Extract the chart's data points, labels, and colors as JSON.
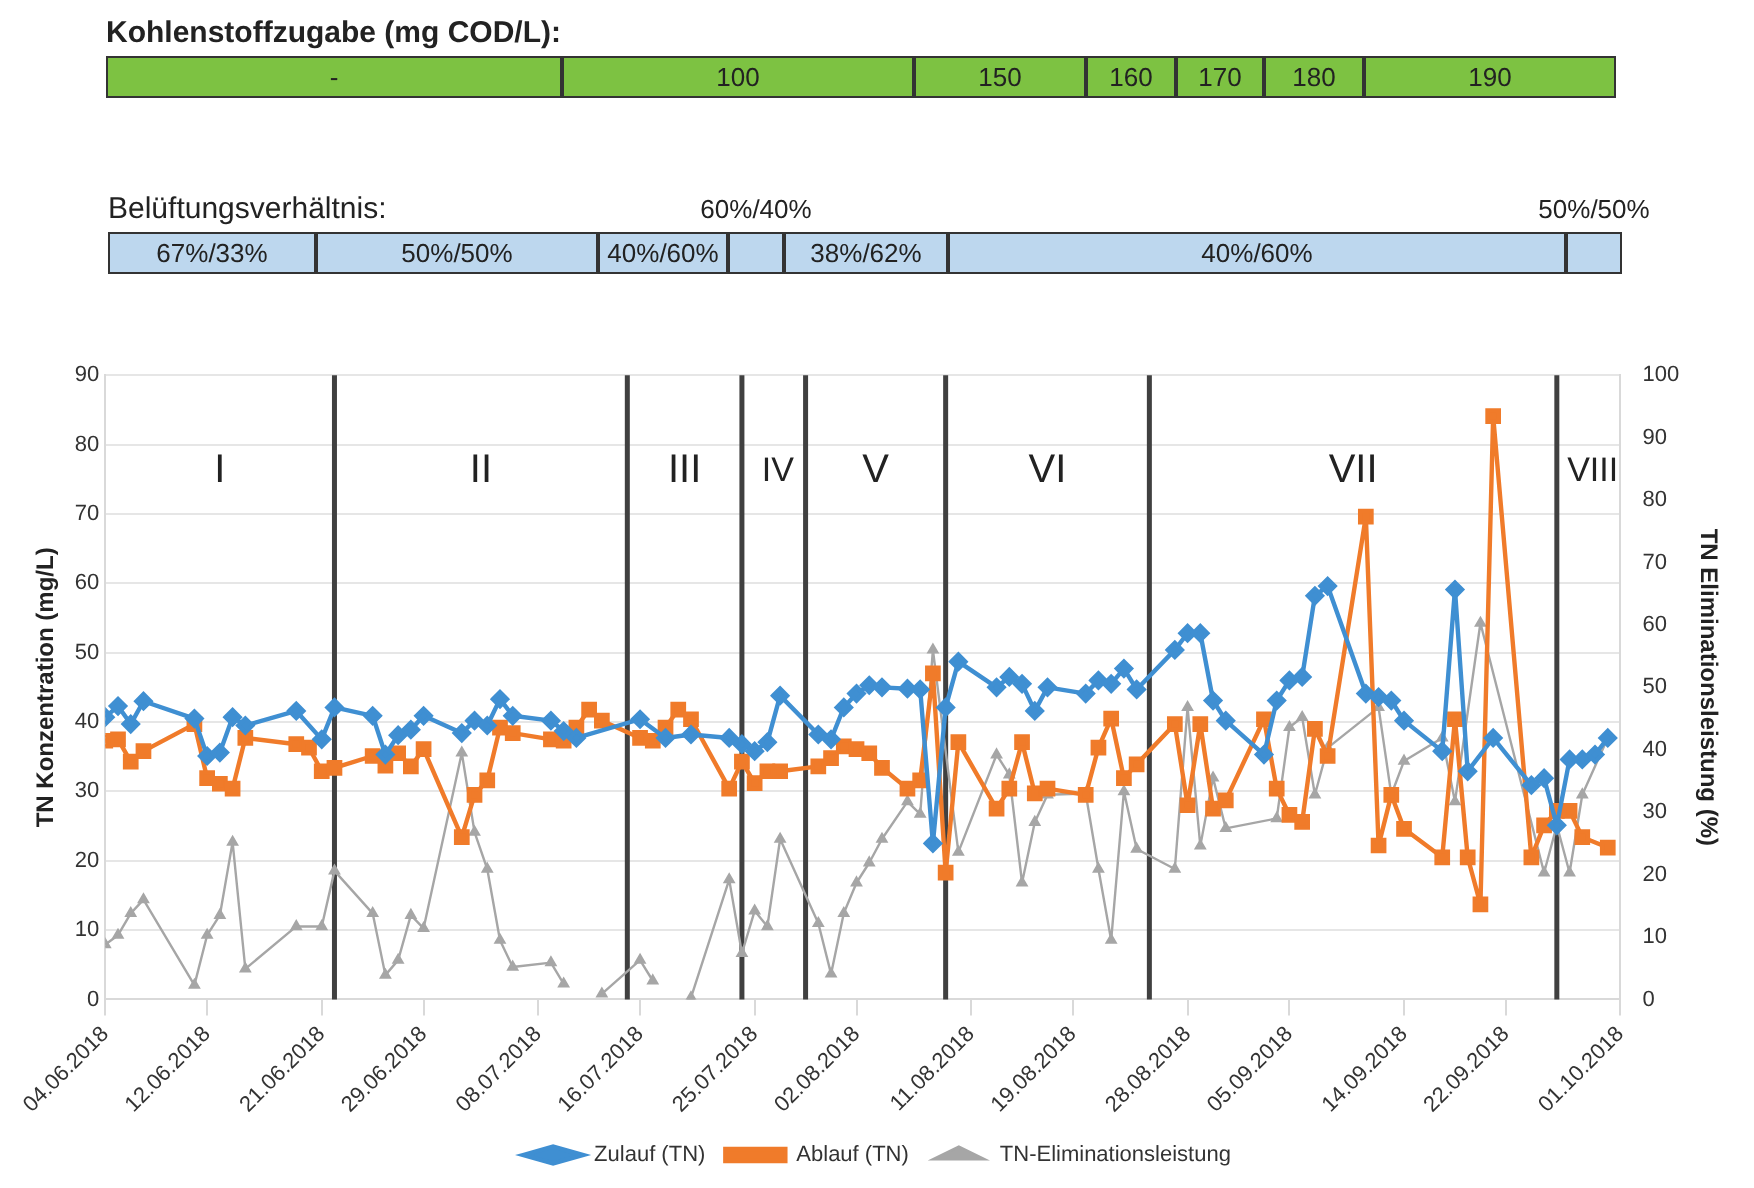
{
  "chart_data": [
    {
      "type": "other",
      "title": "Kohlenstoffzugabe (mg COD/L):",
      "color": "#7dc242",
      "annotations": [
        "-",
        "100",
        "150",
        "160",
        "170",
        "180",
        "190"
      ]
    },
    {
      "type": "other",
      "title": "Belüftungsverhältnis:",
      "color": "#bdd7ee",
      "annotations": [
        "67%/33%",
        "50%/50%",
        "40%/60%",
        "60%/40%",
        "38%/62%",
        "40%/60%",
        "50%/50%"
      ]
    },
    {
      "type": "line",
      "ylabel": "TN Konzentration (mg/L)",
      "y2label": "TN Eliminationsleistung (%)",
      "grid": "y",
      "legend": "bottom",
      "xlim": [
        "2018-06-04",
        "2018-10-01"
      ],
      "xticks": [
        {
          "value": "2018-06-04",
          "label": "04.06.2018"
        },
        {
          "value": "2018-06-12",
          "label": "12.06.2018"
        },
        {
          "value": "2018-06-21",
          "label": "21.06.2018"
        },
        {
          "value": "2018-06-29",
          "label": "29.06.2018"
        },
        {
          "value": "2018-07-08",
          "label": "08.07.2018"
        },
        {
          "value": "2018-07-16",
          "label": "16.07.2018"
        },
        {
          "value": "2018-07-25",
          "label": "25.07.2018"
        },
        {
          "value": "2018-08-02",
          "label": "02.08.2018"
        },
        {
          "value": "2018-08-11",
          "label": "11.08.2018"
        },
        {
          "value": "2018-08-19",
          "label": "19.08.2018"
        },
        {
          "value": "2018-08-28",
          "label": "28.08.2018"
        },
        {
          "value": "2018-09-05",
          "label": "05.09.2018"
        },
        {
          "value": "2018-09-14",
          "label": "14.09.2018"
        },
        {
          "value": "2018-09-22",
          "label": "22.09.2018"
        },
        {
          "value": "2018-10-01",
          "label": "01.10.2018"
        }
      ],
      "ylim": [
        0,
        90
      ],
      "yticks": [
        0,
        10,
        20,
        30,
        40,
        50,
        60,
        70,
        80,
        90
      ],
      "y2lim": [
        0,
        100
      ],
      "y2ticks": [
        0,
        10,
        20,
        30,
        40,
        50,
        60,
        70,
        80,
        90,
        100
      ],
      "ref_lines": [
        {
          "axis": "x",
          "value": "2018-06-22",
          "color": "#404040"
        },
        {
          "axis": "x",
          "value": "2018-07-15",
          "color": "#404040"
        },
        {
          "axis": "x",
          "value": "2018-07-24",
          "color": "#404040"
        },
        {
          "axis": "x",
          "value": "2018-07-29",
          "color": "#404040"
        },
        {
          "axis": "x",
          "value": "2018-08-09",
          "color": "#404040"
        },
        {
          "axis": "x",
          "value": "2018-08-25",
          "color": "#404040"
        },
        {
          "axis": "x",
          "value": "2018-09-26",
          "color": "#404040"
        }
      ],
      "annotations": [
        "I",
        "II",
        "III",
        "IV",
        "V",
        "VI",
        "VII",
        "VIII"
      ],
      "series": [
        {
          "name": "Zulauf (TN)",
          "color": "#3f8fd2",
          "marker": "diamond",
          "x": [
            "2018-06-04",
            "2018-06-05",
            "2018-06-06",
            "2018-06-07",
            "2018-06-11",
            "2018-06-12",
            "2018-06-13",
            "2018-06-14",
            "2018-06-15",
            "2018-06-19",
            "2018-06-21",
            "2018-06-22",
            "2018-06-25",
            "2018-06-26",
            "2018-06-27",
            "2018-06-28",
            "2018-06-29",
            "2018-07-02",
            "2018-07-03",
            "2018-07-04",
            "2018-07-05",
            "2018-07-06",
            "2018-07-09",
            "2018-07-10",
            "2018-07-11",
            "2018-07-16",
            "2018-07-18",
            "2018-07-20",
            "2018-07-23",
            "2018-07-24",
            "2018-07-25",
            "2018-07-26",
            "2018-07-27",
            "2018-07-30",
            "2018-07-31",
            "2018-08-01",
            "2018-08-02",
            "2018-08-03",
            "2018-08-04",
            "2018-08-06",
            "2018-08-07",
            "2018-08-08",
            "2018-08-09",
            "2018-08-10",
            "2018-08-13",
            "2018-08-14",
            "2018-08-15",
            "2018-08-16",
            "2018-08-17",
            "2018-08-20",
            "2018-08-21",
            "2018-08-22",
            "2018-08-23",
            "2018-08-24",
            "2018-08-27",
            "2018-08-28",
            "2018-08-29",
            "2018-08-30",
            "2018-08-31",
            "2018-09-03",
            "2018-09-04",
            "2018-09-05",
            "2018-09-06",
            "2018-09-07",
            "2018-09-08",
            "2018-09-11",
            "2018-09-12",
            "2018-09-13",
            "2018-09-14",
            "2018-09-17",
            "2018-09-18",
            "2018-09-19",
            "2018-09-21",
            "2018-09-24",
            "2018-09-25",
            "2018-09-26",
            "2018-09-27",
            "2018-09-28",
            "2018-09-29",
            "2018-09-30"
          ],
          "values": [
            40.7,
            42.3,
            39.7,
            43.0,
            40.5,
            35.1,
            35.6,
            40.7,
            39.5,
            41.6,
            37.5,
            42.1,
            40.9,
            35.3,
            38.1,
            38.9,
            40.9,
            38.4,
            40.2,
            39.5,
            43.3,
            40.9,
            40.2,
            38.7,
            37.7,
            40.4,
            37.7,
            38.2,
            37.7,
            36.8,
            35.8,
            37.1,
            43.8,
            38.2,
            37.5,
            42.1,
            44.1,
            45.3,
            45.0,
            44.8,
            44.7,
            22.5,
            42.1,
            48.7,
            45.0,
            46.5,
            45.5,
            41.6,
            45.0,
            44.1,
            46.0,
            45.5,
            47.7,
            44.7,
            50.4,
            52.8,
            52.8,
            43.1,
            40.2,
            35.3,
            43.1,
            46.0,
            46.5,
            58.2,
            59.6,
            44.1,
            43.6,
            43.1,
            40.2,
            35.8,
            59.1,
            32.9,
            37.7,
            30.9,
            31.9,
            25.1,
            34.6,
            34.6,
            35.3,
            37.7
          ]
        },
        {
          "name": "Ablauf (TN)",
          "color": "#f07b2a",
          "marker": "square",
          "x": [
            "2018-06-04",
            "2018-06-05",
            "2018-06-06",
            "2018-06-07",
            "2018-06-11",
            "2018-06-12",
            "2018-06-13",
            "2018-06-14",
            "2018-06-15",
            "2018-06-19",
            "2018-06-20",
            "2018-06-21",
            "2018-06-22",
            "2018-06-25",
            "2018-06-26",
            "2018-06-27",
            "2018-06-28",
            "2018-06-29",
            "2018-07-02",
            "2018-07-03",
            "2018-07-04",
            "2018-07-05",
            "2018-07-06",
            "2018-07-09",
            "2018-07-10",
            "2018-07-11",
            "2018-07-12",
            "2018-07-13",
            "2018-07-16",
            "2018-07-17",
            "2018-07-18",
            "2018-07-19",
            "2018-07-20",
            "2018-07-23",
            "2018-07-24",
            "2018-07-25",
            "2018-07-26",
            "2018-07-27",
            "2018-07-30",
            "2018-07-31",
            "2018-08-01",
            "2018-08-02",
            "2018-08-03",
            "2018-08-04",
            "2018-08-06",
            "2018-08-07",
            "2018-08-08",
            "2018-08-09",
            "2018-08-10",
            "2018-08-13",
            "2018-08-14",
            "2018-08-15",
            "2018-08-16",
            "2018-08-17",
            "2018-08-20",
            "2018-08-21",
            "2018-08-22",
            "2018-08-23",
            "2018-08-24",
            "2018-08-27",
            "2018-08-28",
            "2018-08-29",
            "2018-08-30",
            "2018-08-31",
            "2018-09-03",
            "2018-09-04",
            "2018-09-05",
            "2018-09-06",
            "2018-09-07",
            "2018-09-08",
            "2018-09-11",
            "2018-09-12",
            "2018-09-13",
            "2018-09-14",
            "2018-09-17",
            "2018-09-18",
            "2018-09-19",
            "2018-09-20",
            "2018-09-21",
            "2018-09-24",
            "2018-09-25",
            "2018-09-26",
            "2018-09-27",
            "2018-09-28",
            "2018-09-30"
          ],
          "values": [
            37.3,
            37.5,
            34.3,
            35.8,
            39.7,
            31.9,
            31.1,
            30.4,
            37.7,
            36.8,
            36.3,
            32.9,
            33.4,
            35.1,
            33.7,
            35.5,
            33.6,
            36.1,
            23.4,
            29.5,
            31.6,
            39.2,
            38.4,
            37.5,
            37.3,
            39.2,
            41.8,
            40.2,
            37.7,
            37.3,
            39.2,
            41.8,
            40.4,
            30.4,
            34.3,
            31.2,
            32.9,
            32.9,
            33.6,
            34.8,
            36.5,
            36.1,
            35.5,
            33.4,
            30.4,
            31.6,
            47.0,
            18.3,
            37.1,
            27.5,
            30.4,
            37.1,
            29.7,
            30.4,
            29.5,
            36.3,
            40.5,
            31.9,
            33.9,
            39.7,
            28.0,
            39.7,
            27.5,
            28.7,
            40.4,
            30.4,
            26.6,
            25.6,
            39.0,
            35.1,
            69.6,
            22.2,
            29.5,
            24.6,
            20.5,
            40.4,
            20.5,
            13.7,
            84.1,
            20.5,
            25.1,
            27.2,
            27.2,
            23.4,
            21.9
          ]
        },
        {
          "name": "TN-Eliminationsleistung",
          "color": "#a6a6a6",
          "marker": "triangle",
          "axis": "y2",
          "x": [
            "2018-06-04",
            "2018-06-05",
            "2018-06-06",
            "2018-06-07",
            "2018-06-11",
            "2018-06-12",
            "2018-06-13",
            "2018-06-14",
            "2018-06-15",
            "2018-06-19",
            "2018-06-21",
            "2018-06-22",
            "2018-06-25",
            "2018-06-26",
            "2018-06-27",
            "2018-06-28",
            "2018-06-29",
            "2018-07-02",
            "2018-07-03",
            "2018-07-04",
            "2018-07-05",
            "2018-07-06",
            "2018-07-09",
            "2018-07-10",
            "2018-07-11",
            "2018-07-13",
            "2018-07-16",
            "2018-07-17",
            "2018-07-19",
            "2018-07-20",
            "2018-07-23",
            "2018-07-24",
            "2018-07-25",
            "2018-07-26",
            "2018-07-27",
            "2018-07-30",
            "2018-07-31",
            "2018-08-01",
            "2018-08-02",
            "2018-08-03",
            "2018-08-04",
            "2018-08-06",
            "2018-08-07",
            "2018-08-08",
            "2018-08-10",
            "2018-08-13",
            "2018-08-14",
            "2018-08-15",
            "2018-08-16",
            "2018-08-17",
            "2018-08-20",
            "2018-08-21",
            "2018-08-22",
            "2018-08-23",
            "2018-08-24",
            "2018-08-27",
            "2018-08-28",
            "2018-08-29",
            "2018-08-30",
            "2018-08-31",
            "2018-09-04",
            "2018-09-05",
            "2018-09-06",
            "2018-09-07",
            "2018-09-08",
            "2018-09-12",
            "2018-09-13",
            "2018-09-14",
            "2018-09-17",
            "2018-09-18",
            "2018-09-20",
            "2018-09-25",
            "2018-09-26",
            "2018-09-27",
            "2018-09-28",
            "2018-09-30"
          ],
          "values": [
            8.8,
            10.3,
            13.8,
            16.0,
            2.3,
            10.3,
            13.5,
            25.2,
            4.9,
            11.7,
            11.7,
            20.6,
            13.8,
            3.9,
            6.3,
            13.5,
            11.4,
            39.5,
            26.8,
            20.9,
            9.5,
            5.2,
            5.9,
            2.5,
            null,
            0.9,
            6.3,
            3.0,
            null,
            0.3,
            19.2,
            7.4,
            14.2,
            11.7,
            25.7,
            12.2,
            4.1,
            13.8,
            18.7,
            21.9,
            25.7,
            31.7,
            29.7,
            56.0,
            23.6,
            39.2,
            36.0,
            18.7,
            28.4,
            32.8,
            33.0,
            20.9,
            9.5,
            33.3,
            24.1,
            20.9,
            46.8,
            24.6,
            35.5,
            27.4,
            29.0,
            43.6,
            45.2,
            32.8,
            40.3,
            46.8,
            32.8,
            38.2,
            41.9,
            31.7,
            60.3,
            20.3,
            27.9,
            20.3,
            32.8,
            41.9
          ]
        }
      ]
    }
  ]
}
